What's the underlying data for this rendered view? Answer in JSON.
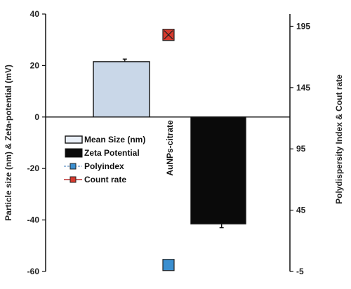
{
  "chart_data": {
    "type": "bar",
    "categories": [
      "AuNPs-citrate"
    ],
    "left_axis": {
      "label": "Particle size (nm) & Zeta-potential (mV)",
      "ylim": [
        -60,
        40
      ],
      "ticks": [
        "40",
        "20",
        "0",
        "-20",
        "-40",
        "-60"
      ]
    },
    "right_axis": {
      "label": "Polydispersity Index & Cout rate",
      "ylim": [
        -5,
        205
      ],
      "ticks": [
        "195",
        "145",
        "95",
        "45",
        "-5"
      ]
    },
    "series": [
      {
        "name": "Mean Size (nm)",
        "kind": "bar",
        "axis": "left",
        "value": 21.5,
        "error": 1.0,
        "color": "#c9d7e8"
      },
      {
        "name": "Zeta Potential",
        "kind": "bar",
        "axis": "left",
        "value": -41.5,
        "error": 1.5,
        "color": "#0a0a0a"
      },
      {
        "name": "Polyindex",
        "kind": "point",
        "axis": "right",
        "value": 0.3,
        "color": "#3b8fd0"
      },
      {
        "name": "Count rate",
        "kind": "point",
        "axis": "right",
        "value": 188,
        "color": "#d83a2e"
      }
    ],
    "legend_position": "center-left",
    "grid": false
  }
}
